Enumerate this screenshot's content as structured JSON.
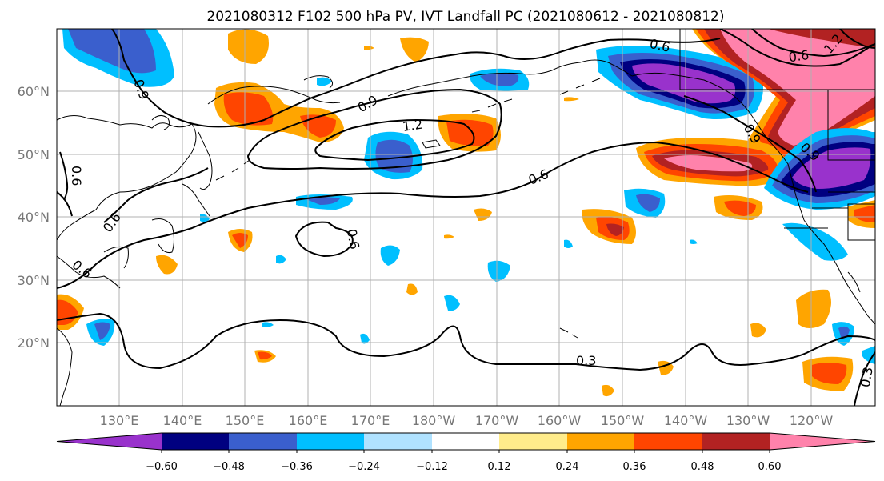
{
  "title": "2021080312 F102 500 hPa PV, IVT Landfall PC (2021080612 - 2021080812)",
  "lat_labels": [
    "20°N",
    "30°N",
    "40°N",
    "50°N",
    "60°N"
  ],
  "lon_labels": [
    "130°E",
    "140°E",
    "150°E",
    "160°E",
    "170°E",
    "180°W",
    "170°W",
    "160°W",
    "150°W",
    "140°W",
    "130°W",
    "120°W"
  ],
  "colorbar": {
    "tick_labels": [
      "−0.60",
      "−0.48",
      "−0.36",
      "−0.24",
      "−0.12",
      "0.12",
      "0.24",
      "0.36",
      "0.48",
      "0.60"
    ],
    "colors": [
      "#9932CC",
      "#000080",
      "#3A5FCD",
      "#00BFFF",
      "#B0E2FF",
      "#FFFFFF",
      "#FFEC8B",
      "#FFA500",
      "#FF4500",
      "#B22222",
      "#FF82AB"
    ]
  },
  "contour_labels": [
    "0.3",
    "0.3",
    "0.6",
    "0.6",
    "0.6",
    "0.6",
    "0.6",
    "0.6",
    "0.9",
    "0.9",
    "0.9",
    "0.9",
    "1.2",
    "1.2",
    "0.6"
  ]
}
